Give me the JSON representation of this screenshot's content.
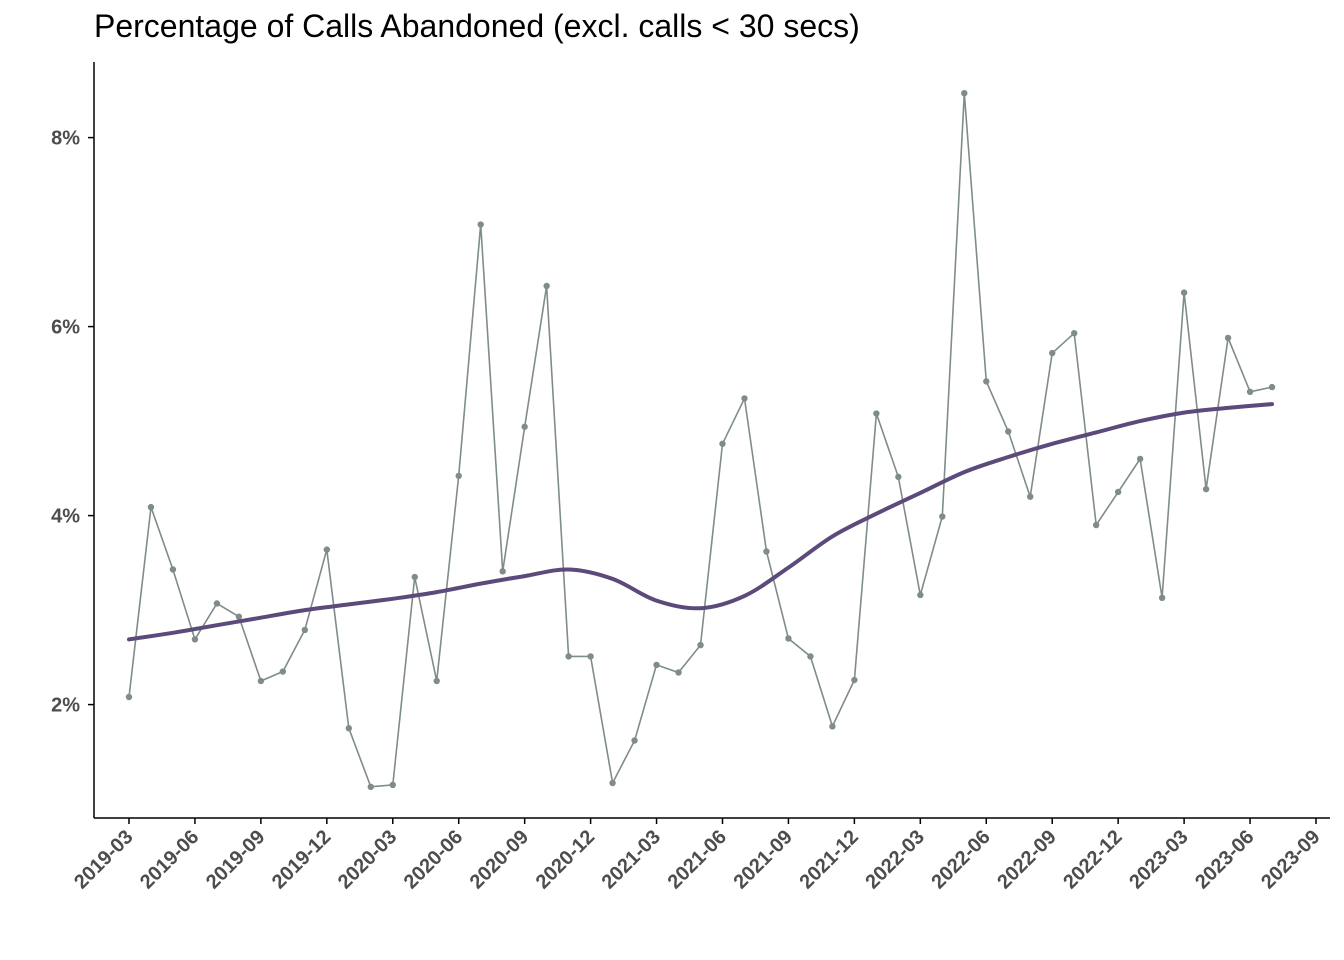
{
  "chart_data": {
    "type": "line",
    "title": "Percentage of Calls Abandoned (excl. calls < 30 secs)",
    "xlabel": "",
    "ylabel": "",
    "x_ticks": [
      "2019-03",
      "2019-06",
      "2019-09",
      "2019-12",
      "2020-03",
      "2020-06",
      "2020-09",
      "2020-12",
      "2021-03",
      "2021-06",
      "2021-09",
      "2021-12",
      "2022-03",
      "2022-06",
      "2022-09",
      "2022-12",
      "2023-03",
      "2023-06",
      "2023-09"
    ],
    "y_ticks": [
      "2%",
      "4%",
      "6%",
      "8%"
    ],
    "y_tick_values": [
      2,
      4,
      6,
      8
    ],
    "ylim": [
      0.8,
      8.8
    ],
    "xlim": [
      "2019-02",
      "2023-09"
    ],
    "grid": false,
    "colors": {
      "monthly": "#7f8c8a",
      "trend": "#5c4a7b"
    },
    "series": [
      {
        "x": [
          "2019-03",
          "2019-04",
          "2019-05",
          "2019-06",
          "2019-07",
          "2019-08",
          "2019-09",
          "2019-10",
          "2019-11",
          "2019-12",
          "2020-01",
          "2020-02",
          "2020-03",
          "2020-04",
          "2020-05",
          "2020-06",
          "2020-07",
          "2020-08",
          "2020-09",
          "2020-10",
          "2020-11",
          "2020-12",
          "2021-01",
          "2021-02",
          "2021-03",
          "2021-04",
          "2021-05",
          "2021-06",
          "2021-07",
          "2021-08",
          "2021-09",
          "2021-10",
          "2021-11",
          "2021-12",
          "2022-01",
          "2022-02",
          "2022-03",
          "2022-04",
          "2022-05",
          "2022-06",
          "2022-07",
          "2022-08",
          "2022-09",
          "2022-10",
          "2022-11",
          "2022-12",
          "2023-01",
          "2023-02",
          "2023-03",
          "2023-04",
          "2023-05",
          "2023-06",
          "2023-07"
        ],
        "values": [
          2.08,
          4.09,
          3.43,
          2.69,
          3.07,
          2.93,
          2.25,
          2.35,
          2.79,
          3.64,
          1.75,
          1.13,
          1.15,
          3.35,
          2.25,
          4.42,
          7.08,
          3.41,
          4.94,
          6.43,
          2.51,
          2.51,
          1.17,
          1.62,
          2.42,
          2.34,
          2.63,
          4.76,
          5.24,
          3.62,
          2.7,
          2.51,
          1.77,
          2.26,
          5.08,
          4.41,
          3.16,
          3.99,
          8.47,
          5.42,
          4.89,
          4.2,
          5.72,
          5.93,
          3.9,
          4.25,
          4.6,
          3.13,
          6.36,
          4.28,
          5.88,
          5.31,
          5.36
        ]
      },
      {
        "x": [
          "2019-03",
          "2019-05",
          "2019-07",
          "2019-09",
          "2019-11",
          "2020-01",
          "2020-03",
          "2020-05",
          "2020-07",
          "2020-09",
          "2020-11",
          "2021-01",
          "2021-03",
          "2021-05",
          "2021-07",
          "2021-09",
          "2021-11",
          "2022-01",
          "2022-03",
          "2022-05",
          "2022-07",
          "2022-09",
          "2022-11",
          "2023-01",
          "2023-03",
          "2023-05",
          "2023-07"
        ],
        "values": [
          2.69,
          2.76,
          2.84,
          2.92,
          3.0,
          3.06,
          3.12,
          3.19,
          3.28,
          3.36,
          3.43,
          3.33,
          3.1,
          3.02,
          3.15,
          3.45,
          3.78,
          4.02,
          4.24,
          4.46,
          4.62,
          4.76,
          4.88,
          5.0,
          5.09,
          5.14,
          5.18
        ]
      }
    ]
  }
}
